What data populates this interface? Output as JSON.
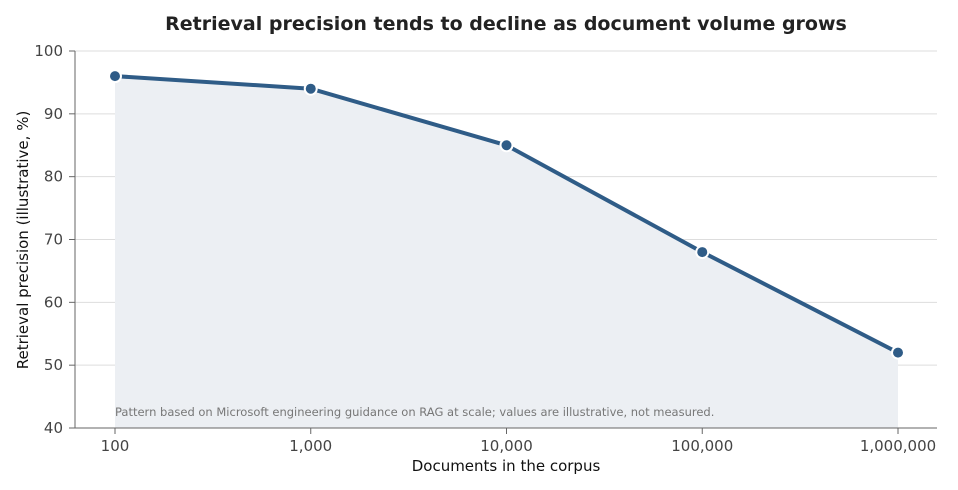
{
  "chart_data": {
    "type": "line",
    "title": "Retrieval precision tends to decline as document volume grows",
    "xlabel": "Documents in the corpus",
    "ylabel": "Retrieval precision (illustrative, %)",
    "x_scale": "log",
    "x": [
      100,
      1000,
      10000,
      100000,
      1000000
    ],
    "x_tick_labels": [
      "100",
      "1,000",
      "10,000",
      "100,000",
      "1,000,000"
    ],
    "y_ticks": [
      40,
      50,
      60,
      70,
      80,
      90,
      100
    ],
    "ylim": [
      40,
      100
    ],
    "series": [
      {
        "values": [
          96,
          94,
          85,
          68,
          52
        ]
      }
    ],
    "annotation": "Pattern based on Microsoft engineering guidance on RAG at scale; values are illustrative, not measured.",
    "grid": "horizontal",
    "line_color": "#2f5c87",
    "fill_color": "#eceff3"
  }
}
